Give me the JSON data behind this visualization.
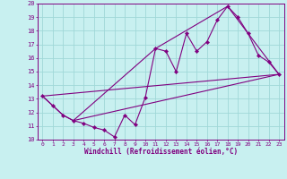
{
  "xlabel": "Windchill (Refroidissement éolien,°C)",
  "background_color": "#c8f0f0",
  "line_color": "#800080",
  "grid_color": "#a0d8d8",
  "xlim": [
    -0.5,
    23.5
  ],
  "ylim": [
    10,
    20
  ],
  "xticks": [
    0,
    1,
    2,
    3,
    4,
    5,
    6,
    7,
    8,
    9,
    10,
    11,
    12,
    13,
    14,
    15,
    16,
    17,
    18,
    19,
    20,
    21,
    22,
    23
  ],
  "yticks": [
    10,
    11,
    12,
    13,
    14,
    15,
    16,
    17,
    18,
    19,
    20
  ],
  "line1_x": [
    0,
    1,
    2,
    3,
    4,
    5,
    6,
    7,
    8,
    9,
    10,
    11,
    12,
    13,
    14,
    15,
    16,
    17,
    18,
    19,
    20,
    21,
    22,
    23
  ],
  "line1_y": [
    13.2,
    12.5,
    11.8,
    11.4,
    11.2,
    10.9,
    10.7,
    10.2,
    11.8,
    11.1,
    13.1,
    16.7,
    16.5,
    15.0,
    17.8,
    16.5,
    17.2,
    18.8,
    19.8,
    19.0,
    17.8,
    16.2,
    15.7,
    14.8
  ],
  "line2_x": [
    0,
    1,
    2,
    3,
    23
  ],
  "line2_y": [
    13.2,
    12.5,
    11.8,
    11.4,
    14.8
  ],
  "line3_x": [
    0,
    23
  ],
  "line3_y": [
    13.2,
    14.8
  ],
  "line4_x": [
    3,
    11,
    18,
    23
  ],
  "line4_y": [
    11.4,
    16.7,
    19.8,
    14.8
  ]
}
